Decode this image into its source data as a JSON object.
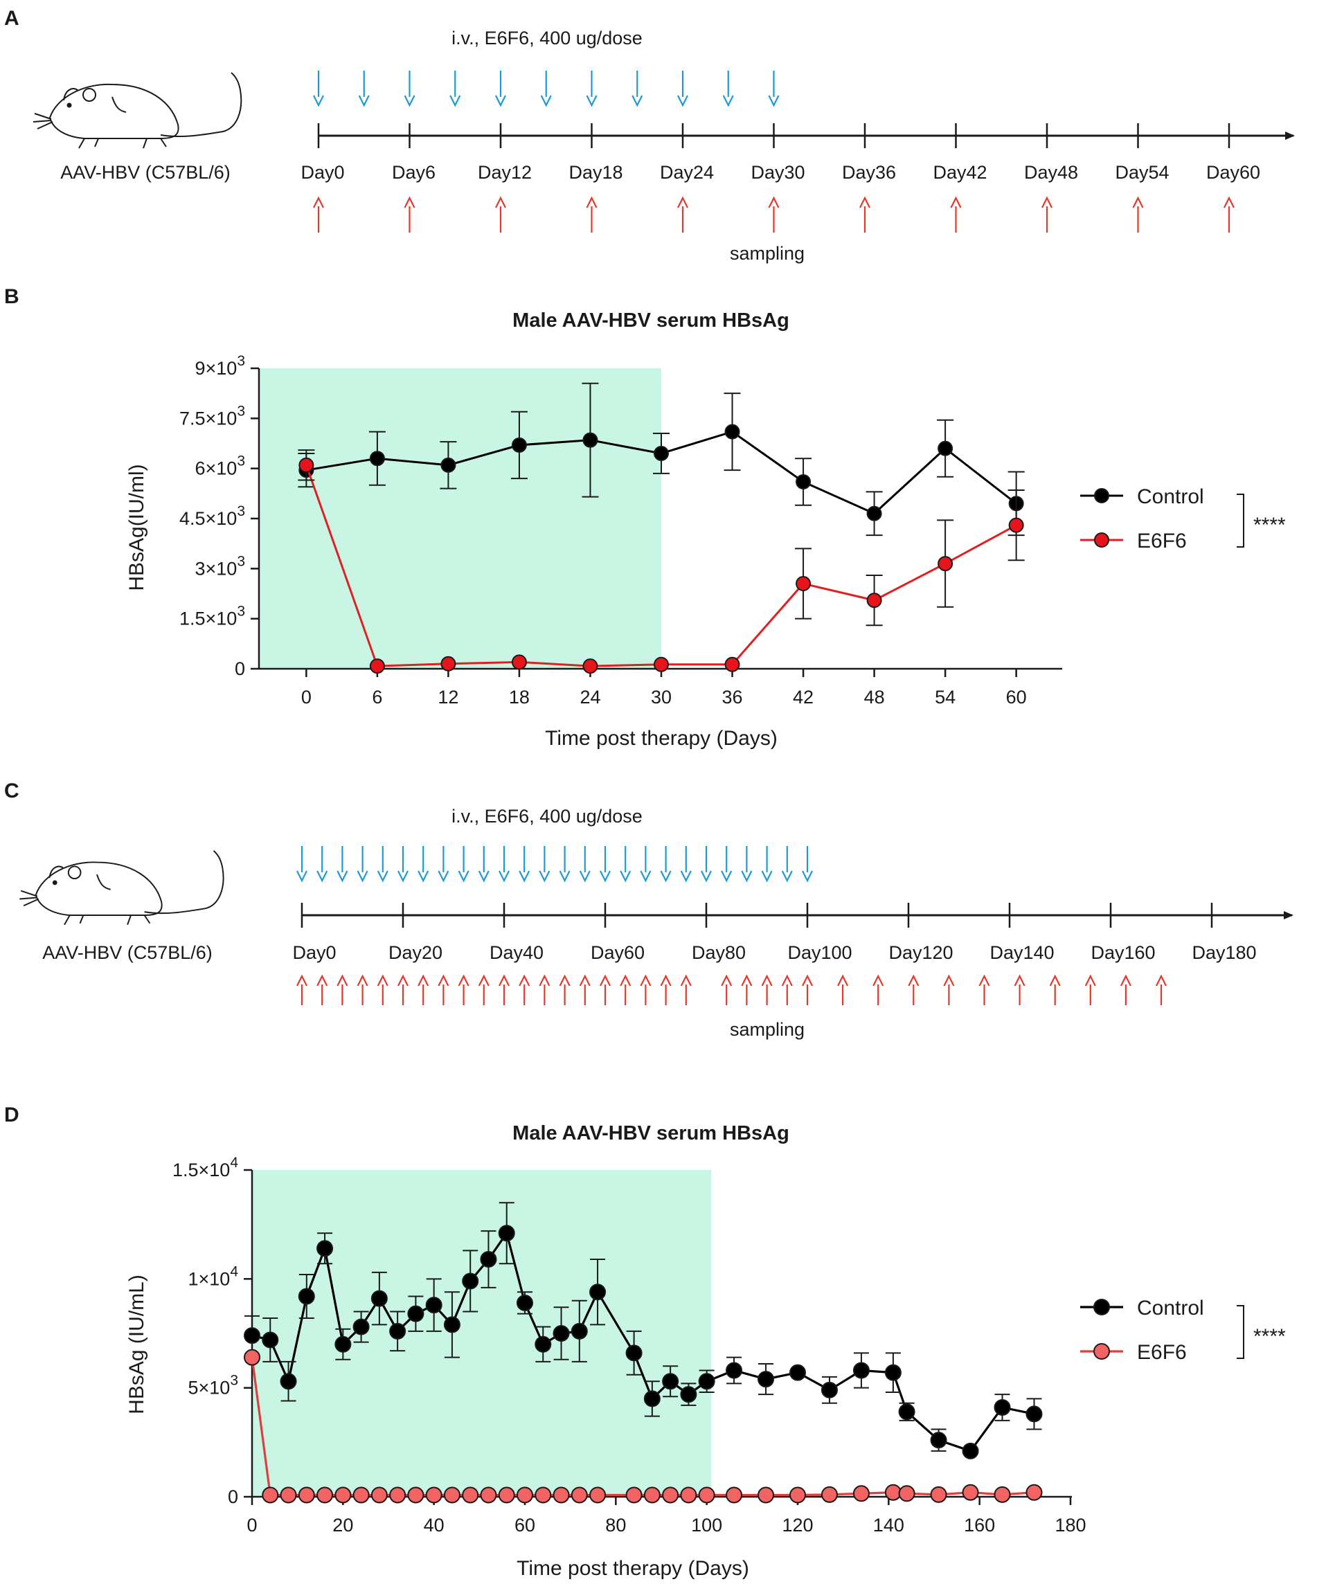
{
  "panel_a": {
    "letter": "A",
    "mouse_caption": "AAV-HBV (C57BL/6)",
    "dose_label": "i.v., E6F6, 400 ug/dose",
    "day_labels": [
      "Day0",
      "Day6",
      "Day12",
      "Day18",
      "Day24",
      "Day30",
      "Day36",
      "Day42",
      "Day48",
      "Day54",
      "Day60"
    ],
    "dose_days": [
      0,
      3,
      6,
      9,
      12,
      15,
      18,
      21,
      24,
      27,
      30
    ],
    "sampling_days": [
      0,
      6,
      12,
      18,
      24,
      30,
      36,
      42,
      48,
      54,
      60
    ],
    "sampling_label": "sampling",
    "dose_color": "#1b9ad6",
    "sampling_color": "#e0392b"
  },
  "panel_c": {
    "letter": "C",
    "mouse_caption": "AAV-HBV (C57BL/6)",
    "dose_label": "i.v., E6F6, 400 ug/dose",
    "day_labels": [
      "Day0",
      "Day20",
      "Day40",
      "Day60",
      "Day80",
      "Day100",
      "Day120",
      "Day140",
      "Day160",
      "Day180"
    ],
    "dose_days": [
      0,
      4,
      8,
      12,
      16,
      20,
      24,
      28,
      32,
      36,
      40,
      44,
      48,
      52,
      56,
      60,
      64,
      68,
      72,
      76,
      80,
      84,
      88,
      92,
      96,
      100
    ],
    "sampling_days": [
      0,
      4,
      8,
      12,
      16,
      20,
      24,
      28,
      32,
      36,
      40,
      44,
      48,
      52,
      56,
      60,
      64,
      68,
      72,
      76,
      84,
      88,
      92,
      96,
      100,
      107,
      114,
      121,
      128,
      135,
      142,
      149,
      156,
      163,
      170
    ],
    "sampling_label": "sampling",
    "dose_color": "#1b9ad6",
    "sampling_color": "#e0392b"
  },
  "chart_data": [
    {
      "panel": "B",
      "type": "line",
      "title": "Male AAV-HBV serum HBsAg",
      "xlabel": "Time post therapy (Days)",
      "ylabel": "HBsAg(IU/ml)",
      "x": [
        0,
        6,
        12,
        18,
        24,
        30,
        36,
        42,
        48,
        54,
        60
      ],
      "xlim": [
        -4,
        64
      ],
      "ylim": [
        0,
        9000
      ],
      "yticks": [
        {
          "base": "0",
          "exp": "",
          "value": 0
        },
        {
          "base": "1.5×10",
          "exp": "3",
          "value": 1500
        },
        {
          "base": "3×10",
          "exp": "3",
          "value": 3000
        },
        {
          "base": "4.5×10",
          "exp": "3",
          "value": 4500
        },
        {
          "base": "6×10",
          "exp": "3",
          "value": 6000
        },
        {
          "base": "7.5×10",
          "exp": "3",
          "value": 7500
        },
        {
          "base": "9×10",
          "exp": "3",
          "value": 9000
        }
      ],
      "xticks": [
        0,
        6,
        12,
        18,
        24,
        30,
        36,
        42,
        48,
        54,
        60
      ],
      "treatment_window": [
        -4,
        30
      ],
      "treatment_color": "#c9f6e4",
      "series": [
        {
          "name": "Control",
          "color": "#000000",
          "fill": "#000000",
          "values": [
            5950,
            6300,
            6100,
            6700,
            6850,
            6450,
            7100,
            5600,
            4650,
            6600,
            4950
          ],
          "errors": [
            500,
            800,
            700,
            1000,
            1700,
            600,
            1150,
            700,
            650,
            850,
            950
          ]
        },
        {
          "name": "E6F6",
          "color": "#e02020",
          "fill": "#e8141c",
          "values": [
            6100,
            80,
            150,
            200,
            80,
            130,
            130,
            2550,
            2050,
            3150,
            4300
          ],
          "errors": [
            450,
            0,
            0,
            0,
            0,
            0,
            0,
            1050,
            750,
            1300,
            1050
          ]
        }
      ],
      "significance": "****"
    },
    {
      "panel": "D",
      "type": "line",
      "title": "Male AAV-HBV serum HBsAg",
      "xlabel": "Time post therapy (Days)",
      "ylabel": "HBsAg (IU/mL)",
      "xlim": [
        0,
        180
      ],
      "ylim": [
        0,
        15000
      ],
      "yticks": [
        {
          "base": "0",
          "exp": "",
          "value": 0
        },
        {
          "base": "5×10",
          "exp": "3",
          "value": 5000
        },
        {
          "base": "1×10",
          "exp": "4",
          "value": 10000
        },
        {
          "base": "1.5×10",
          "exp": "4",
          "value": 15000
        }
      ],
      "xticks": [
        0,
        20,
        40,
        60,
        80,
        100,
        120,
        140,
        160,
        180
      ],
      "treatment_window": [
        0,
        101
      ],
      "treatment_color": "#c9f6e4",
      "series": [
        {
          "name": "Control",
          "color": "#000000",
          "fill": "#000000",
          "x": [
            0,
            4,
            8,
            12,
            16,
            20,
            24,
            28,
            32,
            36,
            40,
            44,
            48,
            52,
            56,
            60,
            64,
            68,
            72,
            76,
            84,
            88,
            92,
            96,
            100,
            106,
            113,
            120,
            127,
            134,
            141,
            144,
            151,
            158,
            165,
            172
          ],
          "values": [
            7400,
            7200,
            5300,
            9200,
            11400,
            7000,
            7800,
            9100,
            7600,
            8400,
            8800,
            7900,
            9900,
            10900,
            12100,
            8900,
            7000,
            7500,
            7600,
            9400,
            6600,
            4500,
            5300,
            4700,
            5300,
            5800,
            5400,
            5700,
            4900,
            5800,
            5700,
            3900,
            2600,
            2100,
            4100,
            3800
          ],
          "errors": [
            900,
            1000,
            900,
            1000,
            700,
            700,
            700,
            1200,
            900,
            800,
            1200,
            1500,
            1400,
            1300,
            1400,
            500,
            800,
            1200,
            1400,
            1500,
            1000,
            800,
            700,
            500,
            500,
            600,
            700,
            0,
            600,
            800,
            900,
            400,
            500,
            0,
            600,
            700
          ]
        },
        {
          "name": "E6F6",
          "color": "#e03e3e",
          "fill": "#f26363",
          "x": [
            0,
            4,
            8,
            12,
            16,
            20,
            24,
            28,
            32,
            36,
            40,
            44,
            48,
            52,
            56,
            60,
            64,
            68,
            72,
            76,
            84,
            88,
            92,
            96,
            100,
            106,
            113,
            120,
            127,
            134,
            141,
            144,
            151,
            158,
            165,
            172
          ],
          "values": [
            6400,
            80,
            80,
            80,
            80,
            80,
            80,
            80,
            80,
            80,
            80,
            80,
            80,
            80,
            80,
            80,
            80,
            80,
            80,
            80,
            80,
            80,
            80,
            80,
            80,
            80,
            80,
            80,
            100,
            150,
            200,
            150,
            100,
            200,
            100,
            200
          ],
          "errors": [
            0,
            0,
            0,
            0,
            0,
            0,
            0,
            0,
            0,
            0,
            0,
            0,
            0,
            0,
            0,
            0,
            0,
            0,
            0,
            0,
            0,
            0,
            0,
            0,
            0,
            0,
            0,
            0,
            0,
            0,
            0,
            0,
            0,
            0,
            0,
            0
          ]
        }
      ],
      "significance": "****"
    }
  ]
}
